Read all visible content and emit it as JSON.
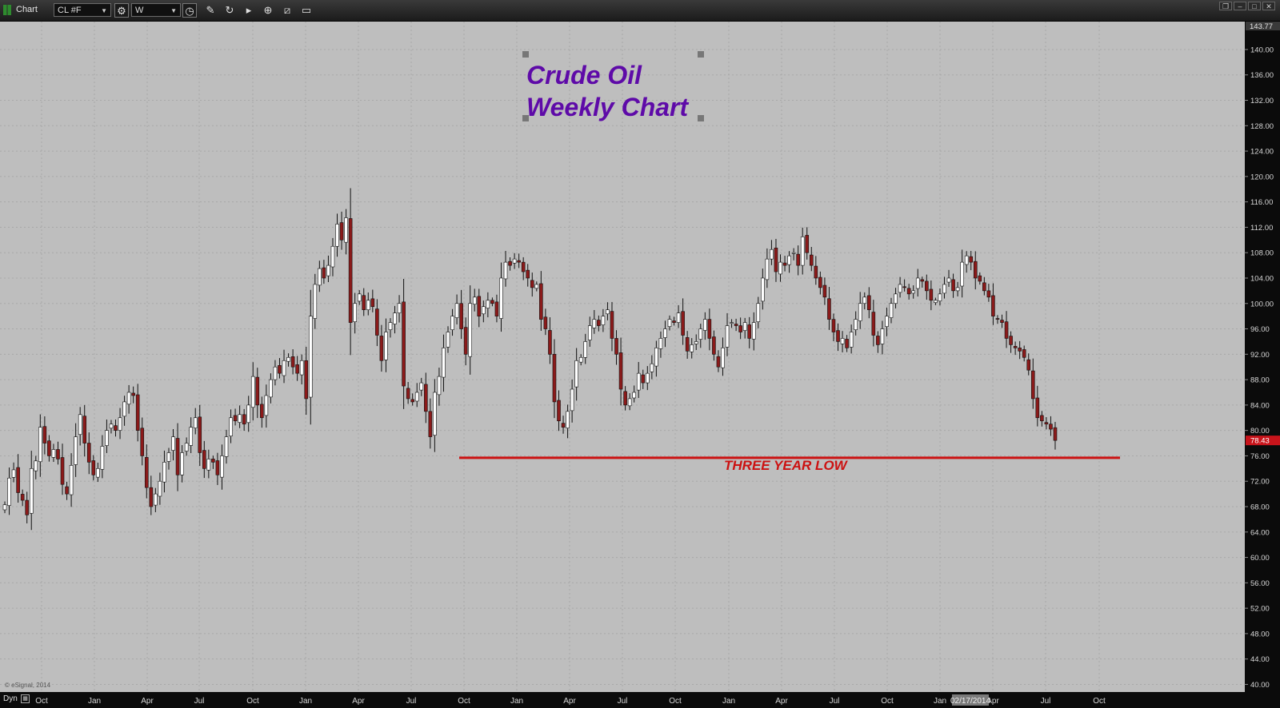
{
  "toolbar": {
    "title": "Chart",
    "symbol": "CL #F",
    "interval": "W",
    "icons": [
      "gear-icon",
      "history-icon",
      "pencil-icon",
      "refresh-icon",
      "play-icon",
      "zoom-icon",
      "ruler-icon",
      "comment-icon"
    ]
  },
  "annotations": {
    "title_line1": "Crude Oil",
    "title_line2": "Weekly Chart",
    "label": "THREE YEAR LOW",
    "copyright": "© eSignal, 2014",
    "support_price": 75.7
  },
  "bottom": {
    "dyn_label": "Dyn",
    "cursor_date": "02/17/2014"
  },
  "colors": {
    "background": "#bebebe",
    "up_candle": "#ffffff",
    "down_candle": "#8b1a1a",
    "title": "#5e0aa8",
    "support_line": "#cc1111",
    "price_tag": "#c8141b"
  },
  "chart_data": {
    "type": "candlestick",
    "symbol": "CL #F",
    "interval": "Weekly",
    "y_ticks": [
      40,
      44,
      48,
      52,
      56,
      60,
      64,
      68,
      72,
      76,
      80,
      84,
      88,
      92,
      96,
      100,
      104,
      108,
      112,
      116,
      120,
      124,
      128,
      132,
      136,
      140
    ],
    "ylim": [
      38.8,
      143.77
    ],
    "top_price_label": "143.77",
    "last_price_label": "78.43",
    "last_price": 78.43,
    "x_tick_labels": [
      "Oct",
      "Jan",
      "Apr",
      "Jul",
      "Oct",
      "Jan",
      "Apr",
      "Jul",
      "Oct",
      "Jan",
      "Apr",
      "Jul",
      "Oct",
      "Jan",
      "Apr",
      "Jul",
      "Oct",
      "Jan",
      "Apr",
      "Jul",
      "Oct"
    ],
    "support_level": 75.7,
    "closes": [
      68.3,
      72.5,
      73.8,
      70.2,
      69.0,
      66.7,
      74.0,
      75.2,
      80.5,
      78.0,
      76.0,
      77.0,
      75.5,
      71.5,
      70.0,
      74.5,
      79.0,
      82.5,
      78.0,
      75.0,
      73.0,
      74.0,
      77.5,
      80.0,
      81.0,
      80.0,
      82.0,
      84.5,
      86.0,
      85.5,
      80.0,
      76.0,
      71.0,
      68.0,
      70.0,
      72.0,
      75.0,
      76.5,
      79.0,
      73.0,
      76.5,
      78.0,
      80.5,
      82.0,
      76.5,
      74.0,
      75.5,
      75.0,
      73.0,
      76.0,
      79.0,
      82.0,
      81.5,
      82.5,
      81.0,
      84.0,
      88.5,
      84.0,
      82.0,
      85.5,
      88.0,
      90.0,
      89.0,
      91.0,
      91.5,
      90.0,
      89.0,
      91.0,
      85.0,
      98.0,
      103.0,
      105.5,
      104.0,
      106.0,
      109.0,
      112.5,
      110.0,
      113.5,
      97.0,
      100.0,
      101.5,
      99.0,
      100.5,
      99.5,
      95.0,
      91.0,
      95.5,
      97.0,
      98.5,
      100.0,
      87.0,
      85.0,
      84.5,
      86.0,
      87.5,
      83.0,
      79.0,
      86.0,
      88.5,
      93.0,
      95.5,
      98.0,
      100.0,
      96.0,
      92.0,
      100.0,
      101.0,
      98.0,
      99.5,
      100.5,
      100.0,
      98.0,
      104.0,
      106.5,
      106.0,
      107.0,
      106.5,
      105.0,
      104.0,
      102.5,
      103.0,
      97.5,
      96.0,
      92.0,
      84.5,
      81.5,
      80.5,
      83.0,
      86.5,
      91.0,
      91.5,
      94.0,
      96.5,
      97.5,
      96.5,
      98.0,
      99.0,
      94.5,
      92.0,
      86.5,
      84.0,
      85.0,
      86.0,
      89.0,
      87.5,
      89.0,
      90.5,
      93.0,
      94.5,
      96.0,
      97.5,
      97.0,
      98.5,
      95.0,
      92.5,
      93.5,
      94.0,
      96.0,
      97.5,
      94.5,
      92.0,
      90.0,
      93.0,
      96.5,
      97.0,
      96.5,
      95.5,
      97.0,
      94.5,
      97.0,
      100.0,
      104.0,
      107.0,
      108.5,
      105.0,
      106.5,
      106.0,
      107.5,
      108.0,
      106.0,
      110.5,
      108.0,
      106.0,
      104.0,
      102.5,
      101.0,
      97.5,
      95.5,
      94.0,
      94.5,
      93.0,
      95.5,
      97.5,
      100.0,
      101.0,
      99.0,
      95.0,
      93.5,
      96.0,
      98.0,
      100.0,
      101.5,
      103.0,
      102.5,
      101.5,
      102.0,
      104.0,
      103.5,
      102.0,
      100.5,
      100.5,
      101.5,
      103.0,
      104.0,
      102.0,
      102.5,
      106.5,
      107.5,
      106.5,
      104.0,
      103.5,
      102.0,
      101.0,
      98.0,
      97.5,
      97.0,
      94.5,
      93.5,
      93.0,
      92.5,
      91.5,
      89.5,
      85.0,
      82.0,
      81.5,
      81.0,
      80.2,
      78.43
    ]
  }
}
